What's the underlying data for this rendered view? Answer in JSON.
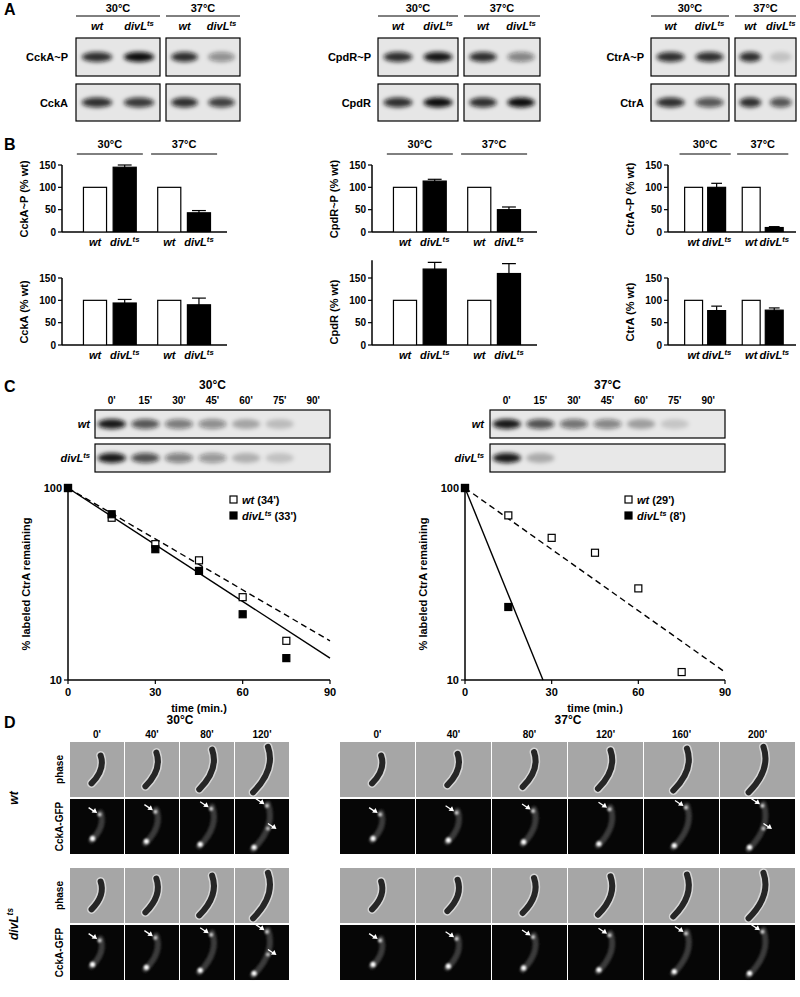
{
  "panel_labels": [
    "A",
    "B",
    "C",
    "D"
  ],
  "panel_a": {
    "temperatures": [
      "30°C",
      "37°C"
    ],
    "genotypes": [
      "wt",
      "divLts"
    ],
    "blots": [
      {
        "rows": [
          "CckA~P",
          "CckA"
        ]
      },
      {
        "rows": [
          "CpdR~P",
          "CpdR"
        ]
      },
      {
        "rows": [
          "CtrA~P",
          "CtrA"
        ]
      }
    ]
  },
  "chart_data": [
    {
      "type": "bar",
      "y_label": "CckA~P (% wt)",
      "groups": [
        "30°C",
        "37°C"
      ],
      "categories": [
        "wt",
        "divLts",
        "wt",
        "divLts"
      ],
      "values": [
        100,
        145,
        100,
        43
      ],
      "errors": [
        null,
        5,
        null,
        5
      ],
      "colors": [
        "#ffffff",
        "#000000",
        "#ffffff",
        "#000000"
      ],
      "ylim": [
        0,
        150
      ],
      "yticks": [
        0,
        50,
        100,
        150
      ]
    },
    {
      "type": "bar",
      "y_label": "CckA (% wt)",
      "categories": [
        "wt",
        "divLts",
        "wt",
        "divLts"
      ],
      "values": [
        100,
        94,
        100,
        90
      ],
      "errors": [
        null,
        8,
        null,
        15
      ],
      "colors": [
        "#ffffff",
        "#000000",
        "#ffffff",
        "#000000"
      ],
      "ylim": [
        0,
        150
      ],
      "yticks": [
        0,
        50,
        100,
        150
      ]
    },
    {
      "type": "bar",
      "y_label": "CpdR~P (% wt)",
      "groups": [
        "30°C",
        "37°C"
      ],
      "categories": [
        "wt",
        "divLts",
        "wt",
        "divLts"
      ],
      "values": [
        100,
        114,
        100,
        50
      ],
      "errors": [
        null,
        4,
        null,
        6
      ],
      "colors": [
        "#ffffff",
        "#000000",
        "#ffffff",
        "#000000"
      ],
      "ylim": [
        0,
        150
      ],
      "yticks": [
        0,
        50,
        100,
        150
      ]
    },
    {
      "type": "bar",
      "y_label": "CpdR (% wt)",
      "categories": [
        "wt",
        "divLts",
        "wt",
        "divLts"
      ],
      "values": [
        100,
        170,
        100,
        160
      ],
      "errors": [
        null,
        15,
        null,
        22
      ],
      "colors": [
        "#ffffff",
        "#000000",
        "#ffffff",
        "#000000"
      ],
      "ylim": [
        0,
        190
      ],
      "yticks": [
        0,
        50,
        100,
        150
      ]
    },
    {
      "type": "bar",
      "y_label": "CtrA~P (% wt)",
      "groups": [
        "30°C",
        "37°C"
      ],
      "categories": [
        "wt",
        "divLts",
        "wt",
        "divLts"
      ],
      "values": [
        100,
        100,
        100,
        10
      ],
      "errors": [
        null,
        9,
        null,
        2
      ],
      "colors": [
        "#ffffff",
        "#000000",
        "#ffffff",
        "#000000"
      ],
      "ylim": [
        0,
        150
      ],
      "yticks": [
        0,
        50,
        100,
        150
      ]
    },
    {
      "type": "bar",
      "y_label": "CtrA (% wt)",
      "categories": [
        "wt",
        "divLts",
        "wt",
        "divLts"
      ],
      "values": [
        100,
        77,
        100,
        78
      ],
      "errors": [
        null,
        10,
        null,
        5
      ],
      "colors": [
        "#ffffff",
        "#000000",
        "#ffffff",
        "#000000"
      ],
      "ylim": [
        0,
        150
      ],
      "yticks": [
        0,
        50,
        100,
        150
      ]
    },
    {
      "type": "line",
      "y_label": "% labeled CtrA remaining",
      "x_label": "time (min.)",
      "log": "y",
      "xlim": [
        0,
        90
      ],
      "xticks": [
        0,
        30,
        60,
        90
      ],
      "ylim": [
        10,
        100
      ],
      "yticks": [
        10,
        100
      ],
      "legend": "upper right",
      "series": [
        {
          "name": "wt (34')",
          "type": "scatter",
          "marker": "open-square",
          "color": "#000000",
          "x": [
            0,
            15,
            30,
            45,
            60,
            75
          ],
          "values": [
            100,
            70,
            51,
            42,
            27,
            16
          ]
        },
        {
          "name": "divLts (33')",
          "type": "scatter",
          "marker": "filled-square",
          "color": "#000000",
          "x": [
            0,
            15,
            30,
            45,
            60,
            75
          ],
          "values": [
            100,
            73,
            48,
            37,
            22,
            13
          ]
        },
        {
          "type": "line",
          "line_style": "dashed",
          "color": "#000000",
          "x": [
            0,
            90
          ],
          "values": [
            100,
            16
          ]
        },
        {
          "type": "line",
          "line_style": "solid",
          "color": "#000000",
          "x": [
            0,
            90
          ],
          "values": [
            100,
            13
          ]
        }
      ]
    },
    {
      "type": "line",
      "y_label": "% labeled CtrA remaining",
      "x_label": "time (min.)",
      "log": "y",
      "xlim": [
        0,
        90
      ],
      "xticks": [
        0,
        30,
        60,
        90
      ],
      "ylim": [
        10,
        100
      ],
      "yticks": [
        10,
        100
      ],
      "legend": "upper right",
      "series": [
        {
          "name": "wt (29')",
          "type": "scatter",
          "marker": "open-square",
          "color": "#000000",
          "x": [
            0,
            15,
            30,
            45,
            60,
            75
          ],
          "values": [
            100,
            72,
            55,
            46,
            30,
            11
          ]
        },
        {
          "name": "divLts (8')",
          "type": "scatter",
          "marker": "filled-square",
          "color": "#000000",
          "x": [
            0,
            15
          ],
          "values": [
            100,
            24
          ]
        },
        {
          "type": "line",
          "line_style": "dashed",
          "color": "#000000",
          "x": [
            0,
            90
          ],
          "values": [
            100,
            11
          ]
        },
        {
          "type": "line",
          "line_style": "solid",
          "color": "#000000",
          "x": [
            0,
            27
          ],
          "values": [
            100,
            10
          ]
        }
      ]
    }
  ],
  "panel_c": {
    "temperatures": [
      "30°C",
      "37°C"
    ],
    "time_points": [
      "0'",
      "15'",
      "30'",
      "45'",
      "60'",
      "75'",
      "90'"
    ],
    "rows": [
      "wt",
      "divLts"
    ]
  },
  "panel_d": {
    "temperatures": [
      "30°C",
      "37°C"
    ],
    "time_points": [
      [
        "0'",
        "40'",
        "80'",
        "120'"
      ],
      [
        "0'",
        "40'",
        "80'",
        "120'",
        "160'",
        "200'"
      ]
    ],
    "rows": [
      "wt",
      "divLts"
    ],
    "channels": [
      "phase",
      "CckA-GFP"
    ]
  }
}
